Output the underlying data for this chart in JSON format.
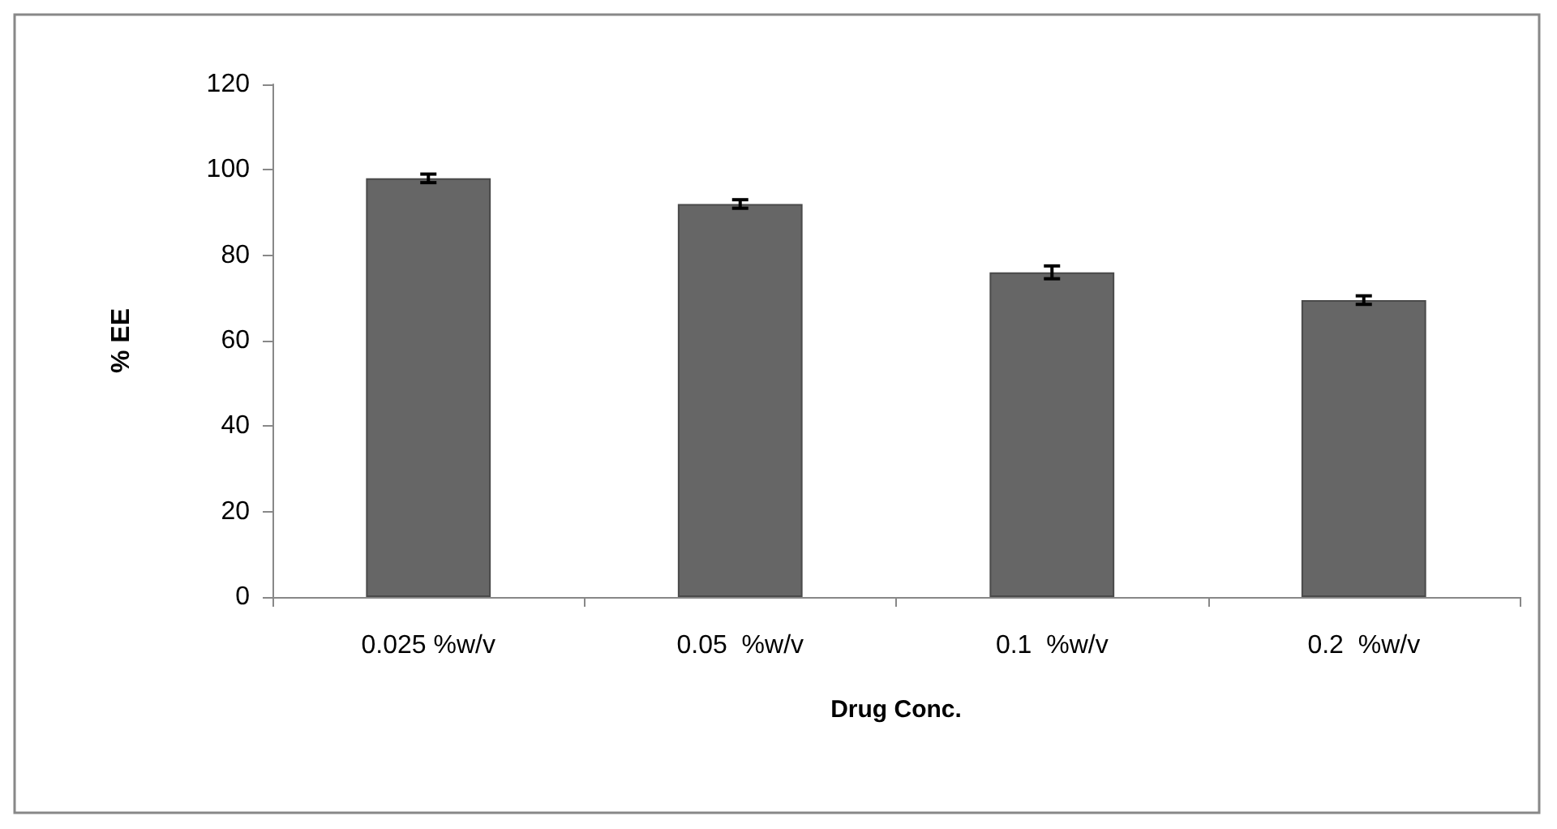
{
  "chart_data": {
    "type": "bar",
    "xlabel": "Drug Conc.",
    "ylabel": "% EE",
    "categories": [
      "0.025 %w/v",
      "0.05  %w/v",
      "0.1  %w/v",
      "0.2  %w/v"
    ],
    "values": [
      98,
      92,
      76,
      69.5
    ],
    "errors": [
      1,
      1,
      1.5,
      1
    ],
    "color": "#666666",
    "ylim": [
      0,
      120
    ],
    "yticks": [
      0,
      20,
      40,
      60,
      80,
      100,
      120
    ],
    "grid": false
  }
}
